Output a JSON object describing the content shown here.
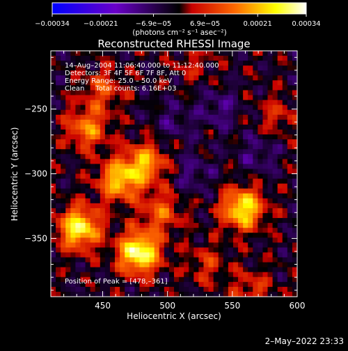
{
  "chart_data": {
    "type": "heatmap",
    "title": "Reconstructed RHESSI Image",
    "xlabel": "Heliocentric X (arcsec)",
    "ylabel": "Heliocentric Y (arcsec)",
    "xlim": [
      410,
      600
    ],
    "ylim": [
      -395,
      -205
    ],
    "x_ticks": [
      450,
      500,
      550,
      600
    ],
    "x_tick_labels": [
      "450",
      "500",
      "550",
      "600"
    ],
    "y_ticks": [
      -250,
      -300,
      -350
    ],
    "y_tick_labels": [
      "−250",
      "−300",
      "−350"
    ],
    "colorbar": {
      "range": [
        -0.00034,
        0.00034
      ],
      "ticks": [
        -0.00034,
        -0.00021,
        -6.9e-05,
        6.9e-05,
        0.00021,
        0.00034
      ],
      "tick_labels": [
        "−0.00034",
        "−0.00021",
        "−6.9e−05",
        "6.9e−05",
        "0.00021",
        "0.00034"
      ],
      "unit_label": "(photons cm⁻² s⁻¹ asec⁻²)",
      "colors": [
        "#0000ff",
        "#6a00c8",
        "#000000",
        "#c80000",
        "#ff6a00",
        "#ffff00",
        "#ffffff"
      ]
    },
    "annotations": [
      "14–Aug–2004 11:06:40.000 to 11:12:40.000",
      "Detectors: 3F 4F 5F 6F 7F 8F, Att 0",
      "Energy Range: 25.0 – 50.0 keV",
      "Clean     Total counts: 6.16E+03"
    ],
    "peak_label": "Position of Peak = [478,–361]",
    "peak": [
      478,
      -361
    ],
    "sources": [
      {
        "x": 478,
        "y": -361,
        "amp": 0.00034
      },
      {
        "x": 432,
        "y": -342,
        "amp": 0.0003
      },
      {
        "x": 558,
        "y": -327,
        "amp": 0.00029
      },
      {
        "x": 463,
        "y": -305,
        "amp": 0.00024
      },
      {
        "x": 483,
        "y": -292,
        "amp": 0.00021
      },
      {
        "x": 438,
        "y": -265,
        "amp": 0.00018
      },
      {
        "x": 450,
        "y": -235,
        "amp": 0.00012
      },
      {
        "x": 495,
        "y": -330,
        "amp": 0.00014
      },
      {
        "x": 530,
        "y": -370,
        "amp": 9e-05
      },
      {
        "x": 585,
        "y": -255,
        "amp": 8e-05
      },
      {
        "x": 565,
        "y": -390,
        "amp": 0.0001
      },
      {
        "x": 520,
        "y": -215,
        "amp": 6e-05
      },
      {
        "x": 540,
        "y": -250,
        "amp": -8e-05
      },
      {
        "x": 520,
        "y": -300,
        "amp": -7e-05
      },
      {
        "x": 505,
        "y": -260,
        "amp": -6e-05
      },
      {
        "x": 570,
        "y": -285,
        "amp": -7e-05
      }
    ]
  },
  "footer": {
    "timestamp": "2–May–2022 23:33"
  }
}
